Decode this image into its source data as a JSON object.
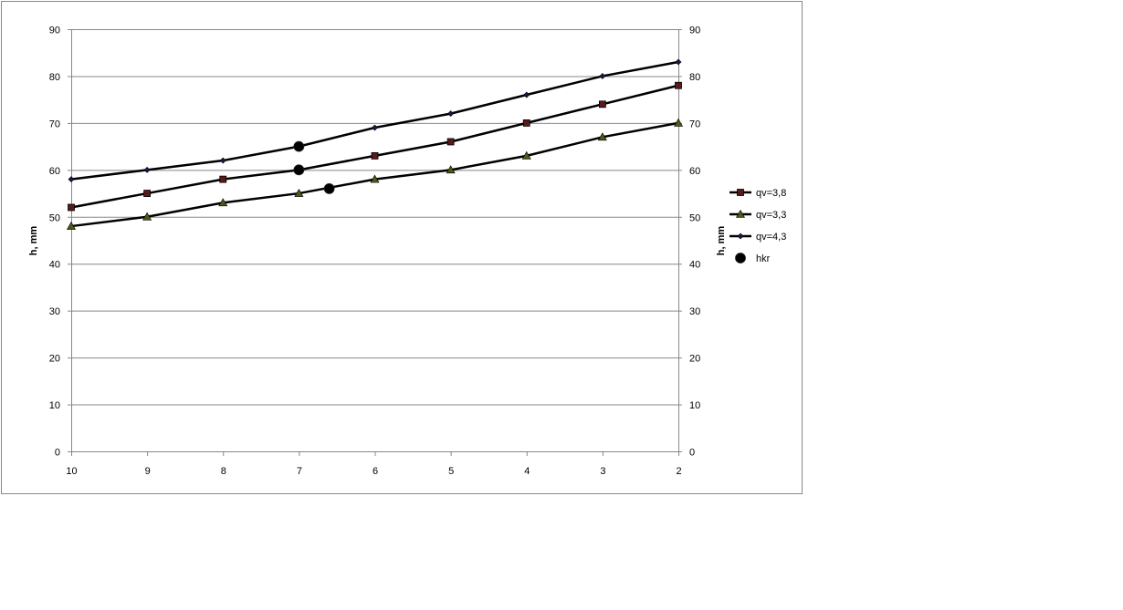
{
  "chart_data": {
    "type": "line",
    "title": "",
    "xlabel": "",
    "ylabel": "h, mm",
    "ylabel_right": "h, mm",
    "x": [
      10,
      9,
      8,
      7,
      6,
      5,
      4,
      3,
      2
    ],
    "x_reversed": true,
    "xlim": [
      10,
      2
    ],
    "ylim": [
      0,
      90
    ],
    "yticks": [
      0,
      10,
      20,
      30,
      40,
      50,
      60,
      70,
      80,
      90
    ],
    "grid": "horizontal",
    "legend_position": "right",
    "series": [
      {
        "name": "qv=3,8",
        "marker": "square",
        "color": "#5a1a1a",
        "values": [
          52,
          55,
          58,
          60,
          63,
          66,
          70,
          74,
          78
        ]
      },
      {
        "name": "qv=3,3",
        "marker": "triangle",
        "color": "#4a5a1a",
        "values": [
          48,
          50,
          53,
          55,
          58,
          60,
          63,
          67,
          70
        ]
      },
      {
        "name": "qv=4,3",
        "marker": "diamond",
        "color": "#1a1a4a",
        "values": [
          58,
          60,
          62,
          65,
          69,
          72,
          76,
          80,
          83
        ]
      },
      {
        "name": "hkr",
        "marker": "circle",
        "color": "#000000",
        "line": false,
        "points": [
          [
            7,
            65
          ],
          [
            7,
            60
          ],
          [
            6.6,
            56
          ]
        ]
      }
    ]
  }
}
